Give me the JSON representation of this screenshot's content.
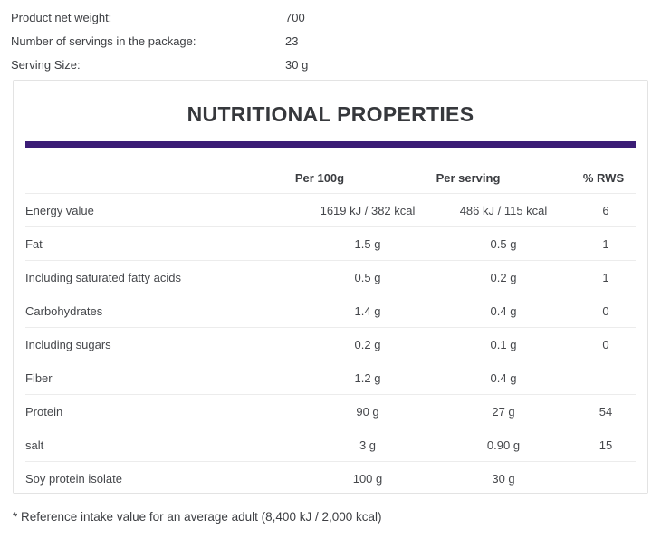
{
  "theme": {
    "accent_color": "#3b1d76",
    "border_color": "#e3e3e3",
    "separator_color": "#ececec",
    "text_color": "#3d3f43"
  },
  "product_info": {
    "rows": [
      {
        "label": "Product net weight:",
        "value": "700"
      },
      {
        "label": "Number of servings in the package:",
        "value": "23"
      },
      {
        "label": "Serving Size:",
        "value": "30 g"
      }
    ]
  },
  "nutrition_table": {
    "title": "NUTRITIONAL PROPERTIES",
    "columns": [
      "",
      "Per 100g",
      "Per serving",
      "% RWS"
    ],
    "rows": [
      {
        "name": "Energy value",
        "per_100g": "1619 kJ / 382 kcal",
        "per_serving": "486 kJ / 115 kcal",
        "rws": "6"
      },
      {
        "name": "Fat",
        "per_100g": "1.5 g",
        "per_serving": "0.5 g",
        "rws": "1"
      },
      {
        "name": "Including saturated fatty acids",
        "per_100g": "0.5 g",
        "per_serving": "0.2 g",
        "rws": "1"
      },
      {
        "name": "Carbohydrates",
        "per_100g": "1.4 g",
        "per_serving": "0.4 g",
        "rws": "0"
      },
      {
        "name": "Including sugars",
        "per_100g": "0.2 g",
        "per_serving": "0.1 g",
        "rws": "0"
      },
      {
        "name": "Fiber",
        "per_100g": "1.2 g",
        "per_serving": "0.4 g",
        "rws": ""
      },
      {
        "name": "Protein",
        "per_100g": "90 g",
        "per_serving": "27 g",
        "rws": "54"
      },
      {
        "name": "salt",
        "per_100g": "3 g",
        "per_serving": "0.90 g",
        "rws": "15"
      },
      {
        "name": "Soy protein isolate",
        "per_100g": "100 g",
        "per_serving": "30 g",
        "rws": ""
      }
    ]
  },
  "footnote": "* Reference intake value for an average adult (8,400 kJ / 2,000 kcal)"
}
